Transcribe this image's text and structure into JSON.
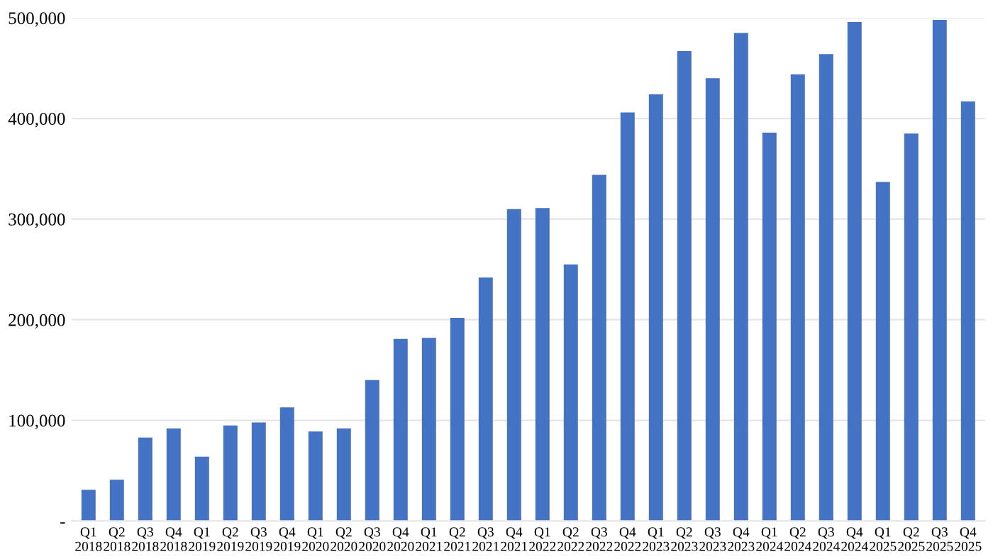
{
  "chart_data": {
    "type": "bar",
    "categories": [
      "Q1\n2018",
      "Q2\n2018",
      "Q3\n2018",
      "Q4\n2018",
      "Q1\n2019",
      "Q2\n2019",
      "Q3\n2019",
      "Q4\n2019",
      "Q1\n2020",
      "Q2\n2020",
      "Q3\n2020",
      "Q4\n2020",
      "Q1\n2021",
      "Q2\n2021",
      "Q3\n2021",
      "Q4\n2021",
      "Q1\n2022",
      "Q2\n2022",
      "Q3\n2022",
      "Q4\n2022",
      "Q1\n2023",
      "Q2\n2023",
      "Q3\n2023",
      "Q4\n2023",
      "Q1\n2024",
      "Q2\n2024",
      "Q3\n2024",
      "Q4\n2024",
      "Q1\n2025",
      "Q2\n2025",
      "Q3\n2025",
      "Q4\n2025"
    ],
    "values": [
      31000,
      41000,
      83000,
      92000,
      64000,
      95000,
      98000,
      113000,
      89000,
      92000,
      140000,
      181000,
      182000,
      202000,
      242000,
      310000,
      311000,
      255000,
      344000,
      406000,
      424000,
      467000,
      440000,
      485000,
      386000,
      444000,
      464000,
      496000,
      337000,
      385000,
      498000,
      417000
    ],
    "color": "#4472c4",
    "ylim": [
      0,
      500000
    ],
    "yticks": [
      {
        "value": 0,
        "label": "-"
      },
      {
        "value": 100000,
        "label": "100,000"
      },
      {
        "value": 200000,
        "label": "200,000"
      },
      {
        "value": 300000,
        "label": "300,000"
      },
      {
        "value": 400000,
        "label": "400,000"
      },
      {
        "value": 500000,
        "label": "500,000"
      }
    ],
    "grid": "y"
  }
}
